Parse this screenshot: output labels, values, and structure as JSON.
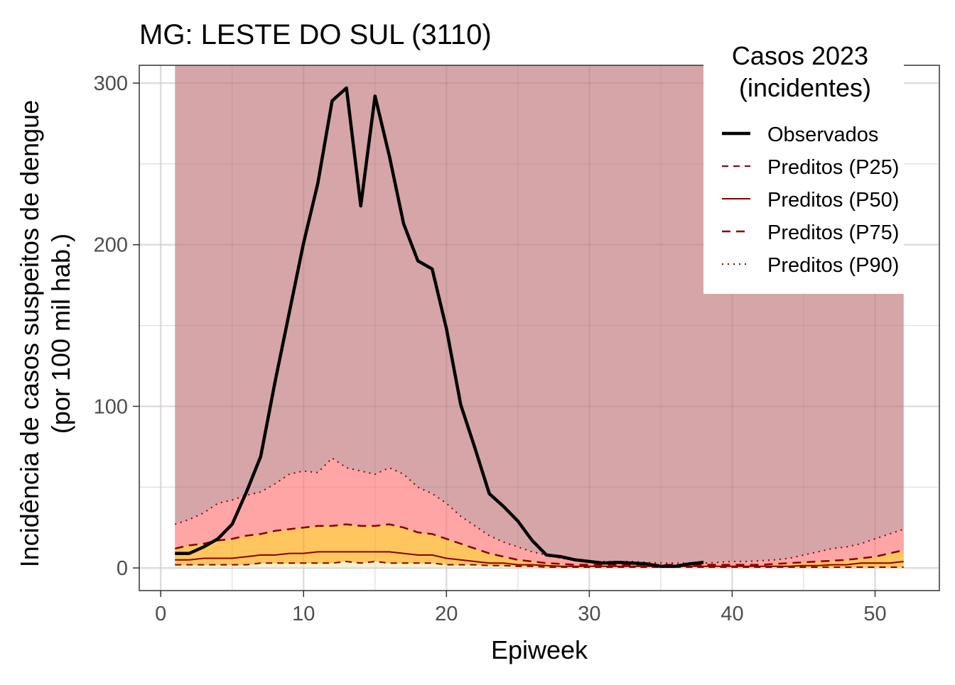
{
  "chart_data": {
    "type": "line",
    "title": "MG: LESTE DO SUL (3110)",
    "xlabel": "Epiweek",
    "ylabel_line1": "Incidência de casos suspeitos de dengue",
    "ylabel_line2": "(por 100 mil hab.)",
    "xlim": [
      -1.5,
      54.5
    ],
    "ylim": [
      -14,
      311
    ],
    "x_ticks": [
      0,
      10,
      20,
      30,
      40,
      50
    ],
    "y_ticks": [
      0,
      100,
      200,
      300
    ],
    "grid": true,
    "legend": {
      "position": "top-right",
      "title_line1": "Casos 2023",
      "title_line2": "(incidentes)",
      "entries": [
        "Observados",
        "Preditos (P25)",
        "Preditos (P50)",
        "Preditos (P75)",
        "Preditos (P90)"
      ]
    },
    "colors": {
      "observed": "#000000",
      "predicted_line": "#8b0000",
      "band_p90_max": "#d5a5a7",
      "band_p75_p90": "#ffa5a6",
      "band_p50_p75": "#ffc660",
      "band_p25_p50": "#ffc660",
      "band_min_p25": "#f3f3d3"
    },
    "bands_x": [
      1,
      52
    ],
    "band_top": 311,
    "x": [
      1,
      2,
      3,
      4,
      5,
      6,
      7,
      8,
      9,
      10,
      11,
      12,
      13,
      14,
      15,
      16,
      17,
      18,
      19,
      20,
      21,
      22,
      23,
      24,
      25,
      26,
      27,
      28,
      29,
      30,
      31,
      32,
      33,
      34,
      35,
      36,
      37,
      38,
      39,
      40,
      41,
      42,
      43,
      44,
      45,
      46,
      47,
      48,
      49,
      50,
      51,
      52
    ],
    "series": [
      {
        "name": "Preditos (P25)",
        "values": [
          2,
          2,
          2,
          2,
          2,
          2,
          3,
          3,
          3,
          3,
          3,
          3,
          4,
          3,
          4,
          3,
          3,
          3,
          3,
          2,
          2,
          2,
          1.5,
          1.5,
          1,
          1,
          0.5,
          0.5,
          0.5,
          0.5,
          0.5,
          0.5,
          0.5,
          0.5,
          0.5,
          0.5,
          0.5,
          0.5,
          0.5,
          0.5,
          0.5,
          0.5,
          0.5,
          0.5,
          0.5,
          0.5,
          0.5,
          0.5,
          0.5,
          0.5,
          0.5,
          0.5
        ]
      },
      {
        "name": "Preditos (P50)",
        "values": [
          5,
          5,
          6,
          6,
          6,
          7,
          8,
          8,
          9,
          9,
          10,
          10,
          10,
          10,
          10,
          10,
          9,
          8,
          8,
          6,
          5,
          4,
          3,
          3,
          2,
          2,
          1.5,
          1,
          1,
          1,
          1,
          1,
          1,
          1,
          1,
          1,
          1,
          1,
          1,
          1,
          1,
          1,
          1,
          1,
          1.5,
          1.5,
          2,
          2,
          3,
          3,
          3,
          4
        ]
      },
      {
        "name": "Preditos (P75)",
        "values": [
          12,
          14,
          15,
          17,
          18,
          20,
          21,
          23,
          24,
          25,
          26,
          26,
          27,
          26,
          26,
          27,
          25,
          22,
          21,
          18,
          15,
          12,
          9,
          7,
          5,
          4,
          3,
          2.5,
          2,
          2,
          2,
          2,
          2,
          2,
          2,
          2,
          2,
          2,
          2,
          2,
          2,
          2,
          2.5,
          3,
          3.5,
          4,
          4.5,
          5,
          6,
          7,
          9,
          11
        ]
      },
      {
        "name": "Preditos (P90)",
        "values": [
          27,
          30,
          34,
          40,
          42,
          45,
          47,
          52,
          58,
          60,
          59,
          68,
          62,
          60,
          58,
          62,
          58,
          50,
          46,
          40,
          32,
          26,
          20,
          16,
          13,
          10,
          8,
          6,
          5,
          4,
          4,
          4,
          4,
          3.5,
          3,
          3,
          3,
          3,
          3.5,
          4,
          4,
          4.5,
          5,
          6,
          8,
          10,
          12,
          13,
          15,
          18,
          21,
          24
        ]
      },
      {
        "name": "Observados",
        "x": [
          1,
          2,
          3,
          4,
          5,
          6,
          7,
          8,
          9,
          10,
          11,
          12,
          13,
          14,
          15,
          16,
          17,
          18,
          19,
          20,
          21,
          22,
          23,
          24,
          25,
          26,
          27,
          28,
          29,
          30,
          31,
          32,
          33,
          34,
          35,
          36,
          37,
          38
        ],
        "values": [
          9,
          9,
          13,
          18,
          27,
          47,
          69,
          115,
          158,
          201,
          238,
          289,
          297,
          224,
          292,
          255,
          213,
          190,
          185,
          148,
          101,
          74,
          46,
          38,
          29,
          17,
          8,
          7,
          5,
          4,
          3,
          3.5,
          3,
          2.5,
          1,
          1,
          2.5,
          3.5
        ]
      }
    ]
  }
}
